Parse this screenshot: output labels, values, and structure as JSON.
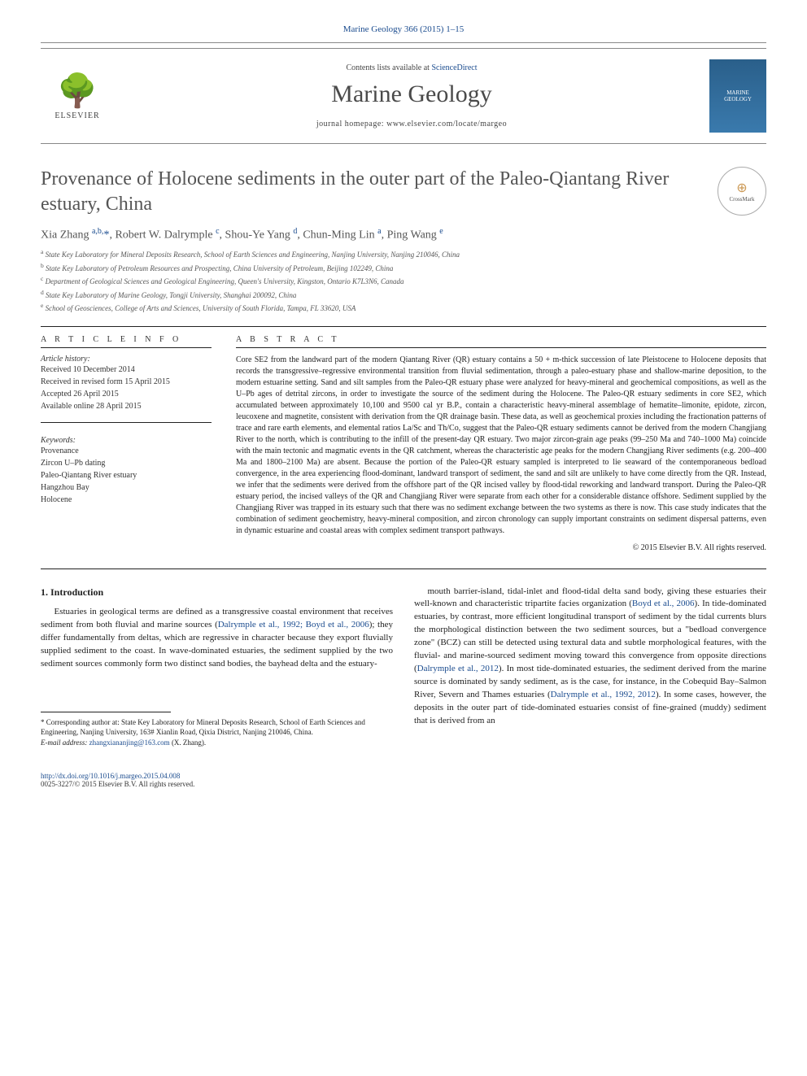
{
  "header": {
    "citation": "Marine Geology 366 (2015) 1–15",
    "contents_prefix": "Contents lists available at ",
    "contents_link": "ScienceDirect",
    "journal_name": "Marine Geology",
    "homepage_label": "journal homepage: ",
    "homepage_url": "www.elsevier.com/locate/margeo",
    "publisher": "ELSEVIER",
    "cover_line1": "MARINE",
    "cover_line2": "GEOLOGY"
  },
  "title": "Provenance of Holocene sediments in the outer part of the Paleo-Qiantang River estuary, China",
  "crossmark": "CrossMark",
  "authors_html": "Xia Zhang <sup>a,b,</sup><span class='star'>*</span>, Robert W. Dalrymple <sup>c</sup>, Shou-Ye Yang <sup>d</sup>, Chun-Ming Lin <sup>a</sup>, Ping Wang <sup>e</sup>",
  "affiliations": {
    "a": "State Key Laboratory for Mineral Deposits Research, School of Earth Sciences and Engineering, Nanjing University, Nanjing 210046, China",
    "b": "State Key Laboratory of Petroleum Resources and Prospecting, China University of Petroleum, Beijing 102249, China",
    "c": "Department of Geological Sciences and Geological Engineering, Queen's University, Kingston, Ontario K7L3N6, Canada",
    "d": "State Key Laboratory of Marine Geology, Tongji University, Shanghai 200092, China",
    "e": "School of Geosciences, College of Arts and Sciences, University of South Florida, Tampa, FL 33620, USA"
  },
  "article_info": {
    "heading": "A R T I C L E   I N F O",
    "history_label": "Article history:",
    "history": [
      "Received 10 December 2014",
      "Received in revised form 15 April 2015",
      "Accepted 26 April 2015",
      "Available online 28 April 2015"
    ],
    "keywords_label": "Keywords:",
    "keywords": [
      "Provenance",
      "Zircon U–Pb dating",
      "Paleo-Qiantang River estuary",
      "Hangzhou Bay",
      "Holocene"
    ]
  },
  "abstract": {
    "heading": "A B S T R A C T",
    "text": "Core SE2 from the landward part of the modern Qiantang River (QR) estuary contains a 50 + m-thick succession of late Pleistocene to Holocene deposits that records the transgressive–regressive environmental transition from fluvial sedimentation, through a paleo-estuary phase and shallow-marine deposition, to the modern estuarine setting. Sand and silt samples from the Paleo-QR estuary phase were analyzed for heavy-mineral and geochemical compositions, as well as the U–Pb ages of detrital zircons, in order to investigate the source of the sediment during the Holocene. The Paleo-QR estuary sediments in core SE2, which accumulated between approximately 10,100 and 9500 cal yr B.P., contain a characteristic heavy-mineral assemblage of hematite–limonite, epidote, zircon, leucoxene and magnetite, consistent with derivation from the QR drainage basin. These data, as well as geochemical proxies including the fractionation patterns of trace and rare earth elements, and elemental ratios La/Sc and Th/Co, suggest that the Paleo-QR estuary sediments cannot be derived from the modern Changjiang River to the north, which is contributing to the infill of the present-day QR estuary. Two major zircon-grain age peaks (99–250 Ma and 740–1000 Ma) coincide with the main tectonic and magmatic events in the QR catchment, whereas the characteristic age peaks for the modern Changjiang River sediments (e.g. 200–400 Ma and 1800–2100 Ma) are absent. Because the portion of the Paleo-QR estuary sampled is interpreted to lie seaward of the contemporaneous bedload convergence, in the area experiencing flood-dominant, landward transport of sediment, the sand and silt are unlikely to have come directly from the QR. Instead, we infer that the sediments were derived from the offshore part of the QR incised valley by flood-tidal reworking and landward transport. During the Paleo-QR estuary period, the incised valleys of the QR and Changjiang River were separate from each other for a considerable distance offshore. Sediment supplied by the Changjiang River was trapped in its estuary such that there was no sediment exchange between the two systems as there is now. This case study indicates that the combination of sediment geochemistry, heavy-mineral composition, and zircon chronology can supply important constraints on sediment dispersal patterns, even in dynamic estuarine and coastal areas with complex sediment transport pathways.",
    "copyright": "© 2015 Elsevier B.V. All rights reserved."
  },
  "section1": {
    "heading": "1. Introduction",
    "para1_pre": "Estuaries in geological terms are defined as a transgressive coastal environment that receives sediment from both fluvial and marine sources (",
    "para1_link": "Dalrymple et al., 1992; Boyd et al., 2006",
    "para1_post": "); they differ fundamentally from deltas, which are regressive in character because they export fluvially supplied sediment to the coast. In wave-dominated estuaries, the sediment supplied by the two sediment sources commonly form two distinct sand bodies, the bayhead delta and the estuary-",
    "para2_pre": "mouth barrier-island, tidal-inlet and flood-tidal delta sand body, giving these estuaries their well-known and characteristic tripartite facies organization (",
    "para2_link1": "Boyd et al., 2006",
    "para2_mid1": "). In tide-dominated estuaries, by contrast, more efficient longitudinal transport of sediment by the tidal currents blurs the morphological distinction between the two sediment sources, but a \"bedload convergence zone\" (BCZ) can still be detected using textural data and subtle morphological features, with the fluvial- and marine-sourced sediment moving toward this convergence from opposite directions (",
    "para2_link2": "Dalrymple et al., 2012",
    "para2_mid2": "). In most tide-dominated estuaries, the sediment derived from the marine source is dominated by sandy sediment, as is the case, for instance, in the Cobequid Bay–Salmon River, Severn and Thames estuaries (",
    "para2_link3": "Dalrymple et al., 1992, 2012",
    "para2_post": "). In some cases, however, the deposits in the outer part of tide-dominated estuaries consist of fine-grained (muddy) sediment that is derived from an"
  },
  "footnote": {
    "corr": "* Corresponding author at: State Key Laboratory for Mineral Deposits Research, School of Earth Sciences and Engineering, Nanjing University, 163# Xianlin Road, Qixia District, Nanjing 210046, China.",
    "email_label": "E-mail address: ",
    "email": "zhangxiananjing@163.com",
    "email_who": " (X. Zhang)."
  },
  "footer": {
    "doi": "http://dx.doi.org/10.1016/j.margeo.2015.04.008",
    "issn_line": "0025-3227/© 2015 Elsevier B.V. All rights reserved."
  },
  "colors": {
    "link": "#1a4b8e",
    "text": "#222222",
    "muted": "#555555"
  }
}
